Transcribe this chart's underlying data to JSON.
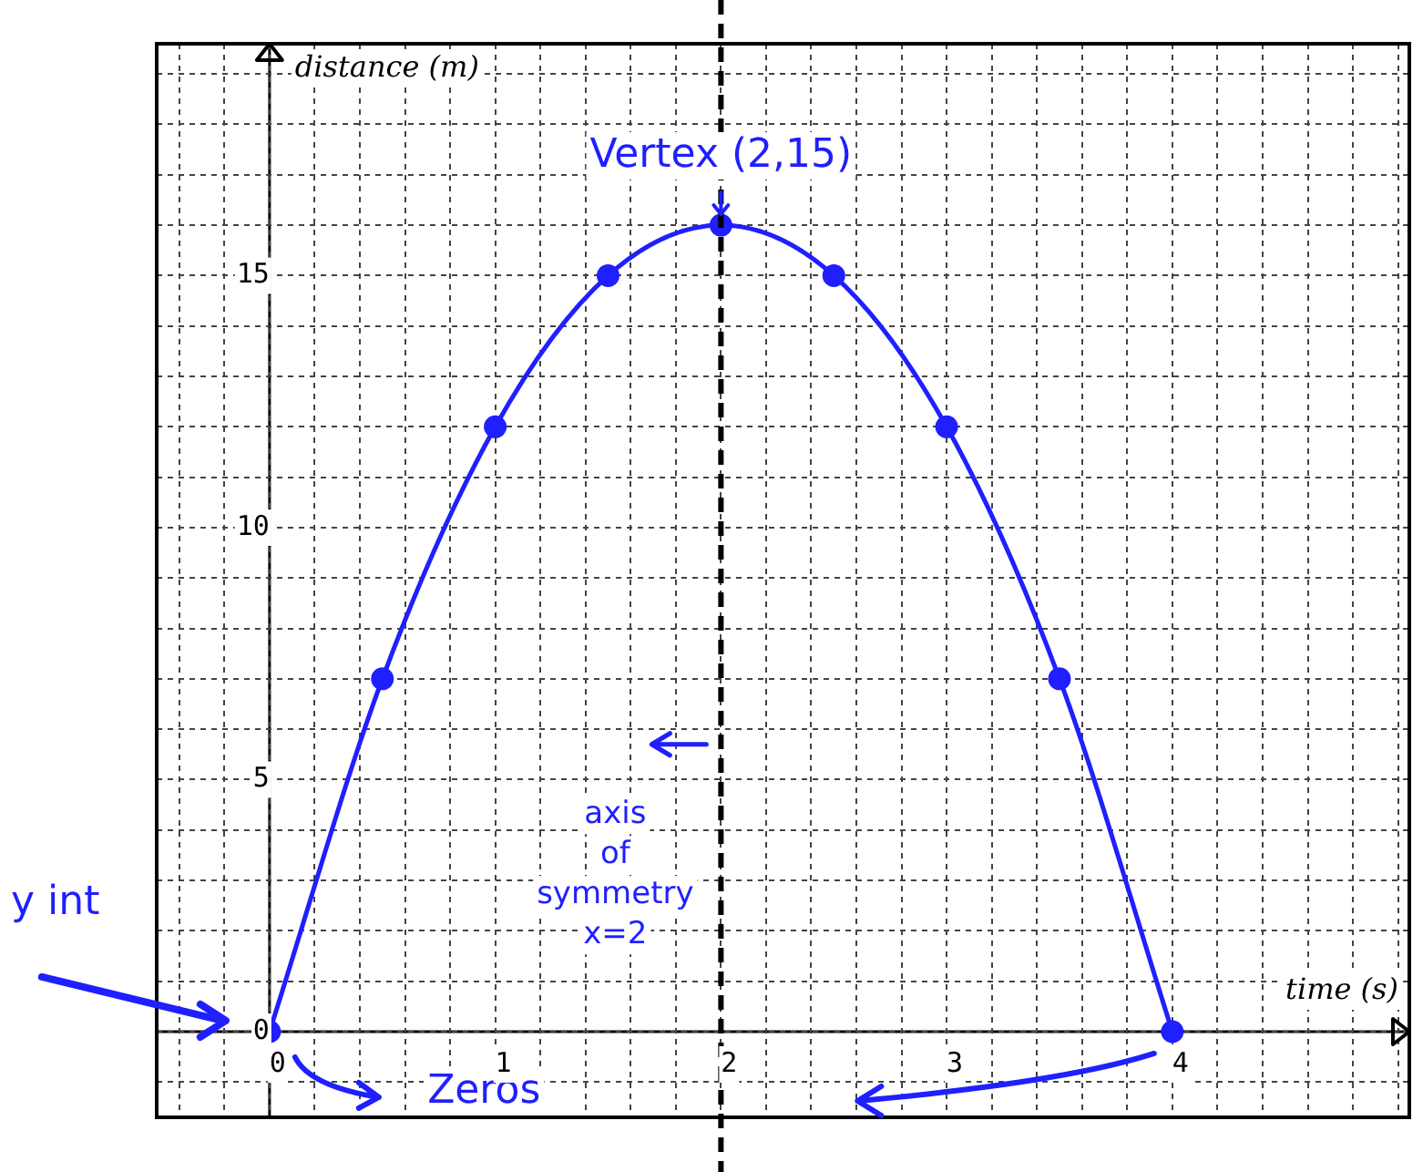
{
  "chart_data": {
    "type": "line",
    "xlabel": "time (s)",
    "ylabel": "distance (m)",
    "x": [
      0,
      0.5,
      1,
      1.5,
      2,
      2.5,
      3,
      3.5,
      4
    ],
    "series": [
      {
        "color": "#1f1fff",
        "values": [
          0,
          7,
          12,
          15,
          16,
          15,
          12,
          7,
          0
        ]
      }
    ],
    "marker": "circle",
    "line_style": "solid",
    "grid": true,
    "legend": false,
    "xlim": [
      -0.5,
      5.05
    ],
    "ylim": [
      -1.7,
      19.6
    ],
    "xticks": [
      {
        "value": -0.4,
        "label": null
      },
      {
        "value": -0.2,
        "label": null
      },
      0,
      {
        "value": 0.2,
        "label": null
      },
      {
        "value": 0.4,
        "label": null
      },
      {
        "value": 0.6,
        "label": null
      },
      {
        "value": 0.8,
        "label": null
      },
      1,
      {
        "value": 1.2,
        "label": null
      },
      {
        "value": 1.4,
        "label": null
      },
      {
        "value": 1.6,
        "label": null
      },
      {
        "value": 1.8,
        "label": null
      },
      2,
      {
        "value": 2.2,
        "label": null
      },
      {
        "value": 2.4,
        "label": null
      },
      {
        "value": 2.6,
        "label": null
      },
      {
        "value": 2.8,
        "label": null
      },
      3,
      {
        "value": 3.2,
        "label": null
      },
      {
        "value": 3.4,
        "label": null
      },
      {
        "value": 3.6,
        "label": null
      },
      {
        "value": 3.8,
        "label": null
      },
      4,
      {
        "value": 4.2,
        "label": null
      },
      {
        "value": 4.4,
        "label": null
      },
      {
        "value": 4.6,
        "label": null
      },
      {
        "value": 4.8,
        "label": null
      },
      {
        "value": 5,
        "label": null
      }
    ],
    "yticks": [
      {
        "value": -1,
        "label": null
      },
      0,
      {
        "value": 1,
        "label": null
      },
      {
        "value": 2,
        "label": null
      },
      {
        "value": 3,
        "label": null
      },
      {
        "value": 4,
        "label": null
      },
      5,
      {
        "value": 6,
        "label": null
      },
      {
        "value": 7,
        "label": null
      },
      {
        "value": 8,
        "label": null
      },
      {
        "value": 9,
        "label": null
      },
      10,
      {
        "value": 11,
        "label": null
      },
      {
        "value": 12,
        "label": null
      },
      {
        "value": 13,
        "label": null
      },
      {
        "value": 14,
        "label": null
      },
      15,
      {
        "value": 16,
        "label": null
      },
      {
        "value": 17,
        "label": null
      },
      {
        "value": 18,
        "label": null
      },
      {
        "value": 19,
        "label": null
      }
    ],
    "ref_lines": [
      {
        "axis": "x",
        "value": 2,
        "label": "axis of symmetry x=2",
        "color": "#000000",
        "line_style": "dashed"
      }
    ],
    "annotations": [
      {
        "text": "Vertex (2,15)",
        "x": 2,
        "y": 16
      },
      "y int",
      "Zeros"
    ]
  }
}
